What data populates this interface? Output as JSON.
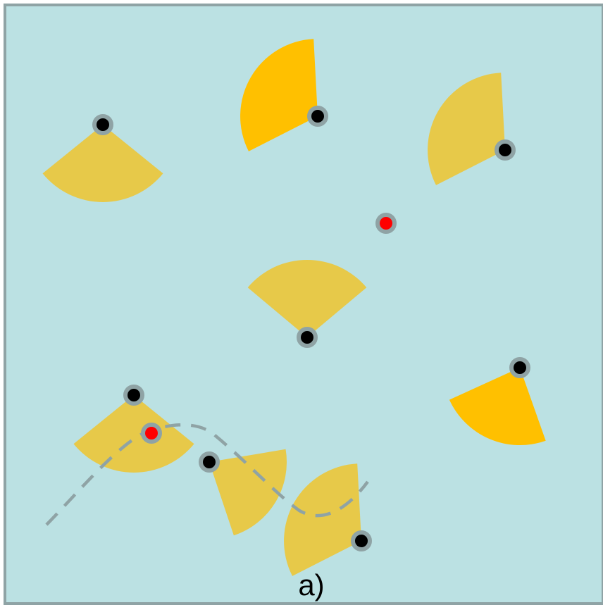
{
  "caption": "a)",
  "colors": {
    "background": "#bbe1e3",
    "frame": "#8fa3a5",
    "sector_bright": "#ffc000",
    "sector_muted": "#eac73c",
    "sensor_node": "#000000",
    "target_node": "#ff0000",
    "node_ring": "#8fa3a5",
    "path": "#8fa3a5"
  },
  "sensors": [
    {
      "id": "s1",
      "sector_heading_deg": 180,
      "sector_span_deg": 102,
      "sector_color": "muted"
    },
    {
      "id": "s2",
      "sector_heading_deg": 300,
      "sector_span_deg": 114,
      "sector_color": "bright"
    },
    {
      "id": "s3",
      "sector_heading_deg": 300,
      "sector_span_deg": 114,
      "sector_color": "muted"
    },
    {
      "id": "s4",
      "sector_heading_deg": 0,
      "sector_span_deg": 100,
      "sector_color": "muted"
    },
    {
      "id": "s5",
      "sector_heading_deg": 203,
      "sector_span_deg": 85,
      "sector_color": "bright"
    },
    {
      "id": "s6",
      "sector_heading_deg": 121,
      "sector_span_deg": 81,
      "sector_color": "muted"
    },
    {
      "id": "s7",
      "sector_heading_deg": 180,
      "sector_span_deg": 102,
      "sector_color": "muted"
    },
    {
      "id": "s8",
      "sector_heading_deg": 300,
      "sector_span_deg": 114,
      "sector_color": "muted"
    }
  ],
  "targets": [
    {
      "id": "t1"
    },
    {
      "id": "t2"
    }
  ]
}
